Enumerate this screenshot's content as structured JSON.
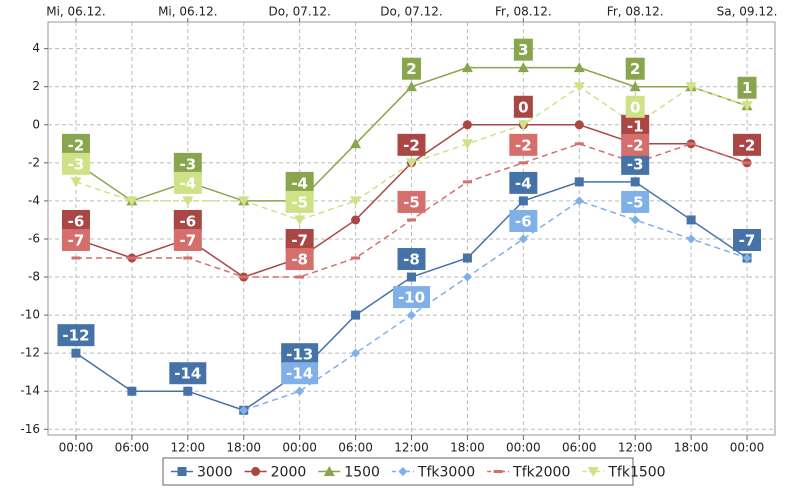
{
  "chart_data": {
    "type": "line",
    "categories": [
      "00:00",
      "06:00",
      "12:00",
      "18:00",
      "00:00",
      "06:00",
      "12:00",
      "18:00",
      "00:00",
      "06:00",
      "12:00",
      "18:00",
      "00:00"
    ],
    "top_categories": [
      "Mi, 06.12.",
      "Mi, 06.12.",
      "Do, 07.12.",
      "Do, 07.12.",
      "Fr, 08.12.",
      "Fr, 08.12.",
      "Sa, 09.12."
    ],
    "ylim": [
      -16.3,
      5.4
    ],
    "yticks": [
      -16,
      -14,
      -12,
      -10,
      -8,
      -6,
      -4,
      -2,
      0,
      2,
      4
    ],
    "grid": true,
    "legend": "bottom",
    "series": [
      {
        "name": "3000",
        "color": "#4572a7",
        "marker": "square",
        "line_style": "solid",
        "values": [
          -12,
          -14,
          -14,
          -15,
          -13,
          -10,
          -8,
          -7,
          -4,
          -3,
          -3,
          -5,
          -7
        ],
        "value_labels": [
          "-12",
          null,
          "-14",
          null,
          "-13",
          null,
          "-8",
          null,
          "-4",
          null,
          "-3",
          null,
          "-7"
        ]
      },
      {
        "name": "2000",
        "color": "#aa4643",
        "marker": "circle",
        "line_style": "solid",
        "values": [
          -6,
          -7,
          -6,
          -8,
          -7,
          -5,
          -2,
          0,
          0,
          0,
          -1,
          -1,
          -2
        ],
        "value_labels": [
          "-6",
          null,
          "-6",
          null,
          "-7",
          null,
          "-2",
          null,
          "0",
          null,
          "-1",
          null,
          "-2"
        ]
      },
      {
        "name": "1500",
        "color": "#89a54e",
        "marker": "triangle",
        "line_style": "solid",
        "values": [
          -2,
          -4,
          -3,
          -4,
          -4,
          -1,
          2,
          3,
          3,
          3,
          2,
          2,
          1
        ],
        "value_labels": [
          "-2",
          null,
          "-3",
          null,
          "-4",
          null,
          "2",
          null,
          "3",
          null,
          "2",
          null,
          "1"
        ]
      },
      {
        "name": "Tfk3000",
        "color": "#80b0e8",
        "marker": "diamond",
        "line_style": "dashed",
        "values": [
          null,
          null,
          null,
          -15,
          -14,
          -12,
          -10,
          -8,
          -6,
          -4,
          -5,
          -6,
          -7
        ],
        "value_labels": [
          null,
          null,
          null,
          null,
          "-14",
          null,
          "-10",
          null,
          "-6",
          null,
          "-5",
          null,
          null
        ]
      },
      {
        "name": "Tfk2000",
        "color": "#d46f6c",
        "marker": "dash",
        "line_style": "dashed",
        "values": [
          -7,
          -7,
          -7,
          -8,
          -8,
          -7,
          -5,
          -3,
          -2,
          -1,
          -2,
          -1,
          -2
        ],
        "value_labels": [
          "-7",
          null,
          "-7",
          null,
          "-8",
          null,
          "-5",
          null,
          "-2",
          null,
          "-2",
          null,
          null
        ]
      },
      {
        "name": "Tfk1500",
        "color": "#cfe288",
        "marker": "triangle-down",
        "line_style": "dashed",
        "values": [
          -3,
          -4,
          -4,
          -4,
          -5,
          -4,
          -2,
          -1,
          0,
          2,
          0,
          2,
          1
        ],
        "value_labels": [
          "-3",
          null,
          "-4",
          null,
          "-5",
          null,
          null,
          null,
          null,
          null,
          "0",
          null,
          null
        ]
      }
    ]
  }
}
